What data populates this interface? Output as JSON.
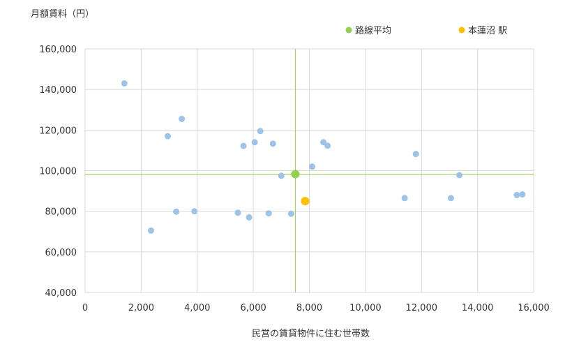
{
  "chart_data": {
    "type": "scatter",
    "ylabel": "月額賃料（円）",
    "xlabel": "民営の賃貸物件に住む世帯数",
    "xlim": [
      0,
      16000
    ],
    "ylim": [
      40000,
      160000
    ],
    "x_ticks": [
      0,
      2000,
      4000,
      6000,
      8000,
      10000,
      12000,
      14000,
      16000
    ],
    "y_ticks": [
      40000,
      60000,
      80000,
      100000,
      120000,
      140000,
      160000
    ],
    "x_tick_labels": [
      "0",
      "2,000",
      "4,000",
      "6,000",
      "8,000",
      "10,000",
      "12,000",
      "14,000",
      "16,000"
    ],
    "y_tick_labels": [
      "40,000",
      "60,000",
      "80,000",
      "100,000",
      "120,000",
      "140,000",
      "160,000"
    ],
    "grid": true,
    "legend_position": "top-right",
    "series": [
      {
        "color": "#9dc3e6",
        "points": [
          {
            "x": 1400,
            "y": 143000
          },
          {
            "x": 2950,
            "y": 117000
          },
          {
            "x": 3450,
            "y": 125500
          },
          {
            "x": 2350,
            "y": 70500
          },
          {
            "x": 3250,
            "y": 79800
          },
          {
            "x": 3900,
            "y": 80000
          },
          {
            "x": 5450,
            "y": 79300
          },
          {
            "x": 5850,
            "y": 77000
          },
          {
            "x": 5650,
            "y": 112200
          },
          {
            "x": 6050,
            "y": 114000
          },
          {
            "x": 6250,
            "y": 119500
          },
          {
            "x": 6550,
            "y": 79000
          },
          {
            "x": 6700,
            "y": 113300
          },
          {
            "x": 7000,
            "y": 97500
          },
          {
            "x": 7350,
            "y": 78800
          },
          {
            "x": 8100,
            "y": 102000
          },
          {
            "x": 8500,
            "y": 114000
          },
          {
            "x": 8650,
            "y": 112300
          },
          {
            "x": 11400,
            "y": 86500
          },
          {
            "x": 11800,
            "y": 108200
          },
          {
            "x": 13050,
            "y": 86500
          },
          {
            "x": 13350,
            "y": 97800
          },
          {
            "x": 15400,
            "y": 88000
          },
          {
            "x": 15600,
            "y": 88300
          }
        ]
      },
      {
        "name": "路線平均",
        "color": "#92d050",
        "points": [
          {
            "x": 7500,
            "y": 98300
          }
        ]
      },
      {
        "name": "本蓮沼 駅",
        "color": "#ffc000",
        "points": [
          {
            "x": 7850,
            "y": 85000
          }
        ]
      }
    ],
    "reference_lines": {
      "x": 7500,
      "y": 98300,
      "color": "#92d050"
    }
  }
}
